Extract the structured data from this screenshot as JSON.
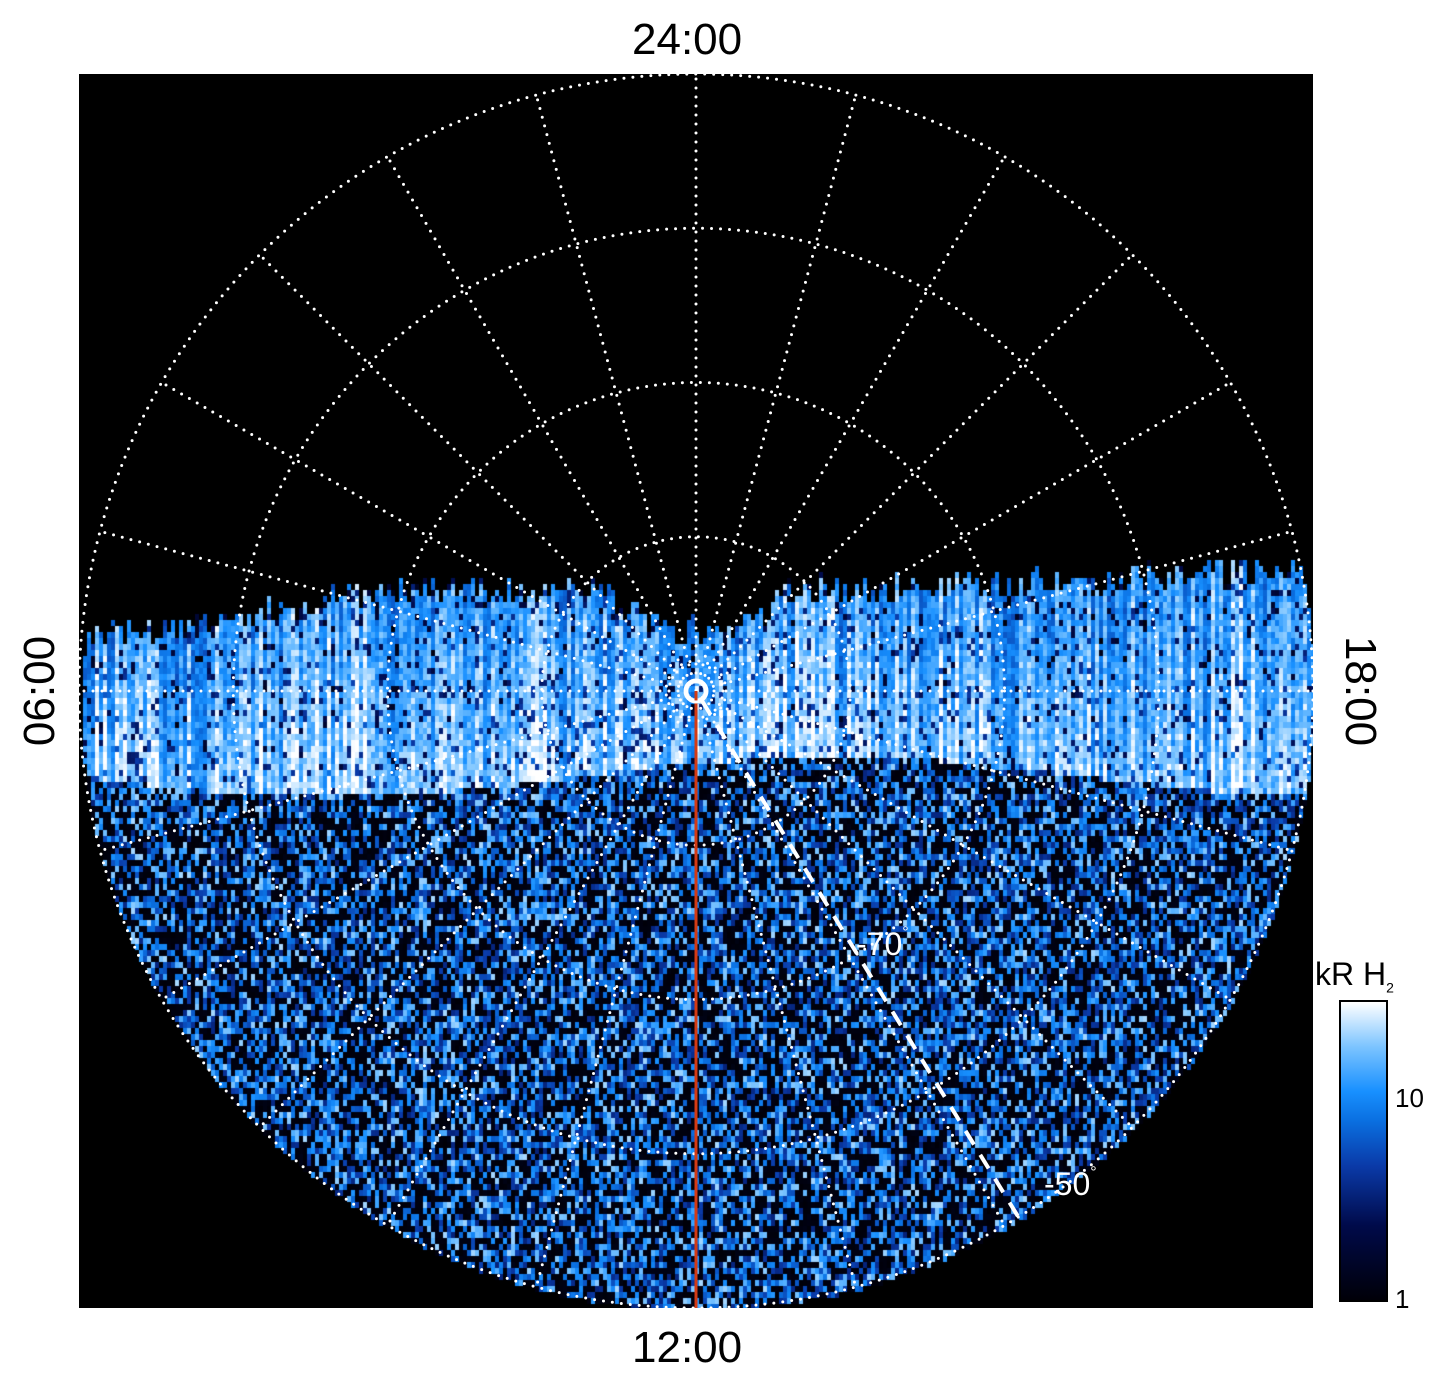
{
  "chart_data": {
    "type": "heatmap",
    "projection": "polar, pole-centered, southern hemisphere",
    "local_time_labels": {
      "top": "24:00",
      "bottom": "12:00",
      "left": "06:00",
      "right": "18:00"
    },
    "latitude_labels": [
      {
        "text": "-70",
        "unit": "°",
        "latitude": -70
      },
      {
        "text": "-50",
        "unit": "°",
        "latitude": -50
      }
    ],
    "latitude_grid": [
      -80,
      -70,
      -60,
      -50
    ],
    "latitude_range": [
      -90,
      -50
    ],
    "local_time_grid_step_hours": 1,
    "grid": true,
    "grid_style": "dotted white",
    "red_line": {
      "local_time": "12:00",
      "from_latitude": -90,
      "to_latitude": -50,
      "color": "#d33a14"
    },
    "dashed_line": {
      "local_time_hours": 14.1,
      "from_latitude": -90,
      "to_latitude": -50,
      "color": "#ffffff"
    },
    "colorbar": {
      "title": "kR H",
      "title_subscript": "2",
      "scale": "log",
      "range": [
        1,
        30
      ],
      "ticks": [
        {
          "value": 1,
          "label": "1"
        },
        {
          "value": 10,
          "label": "10"
        }
      ],
      "colors": [
        "#000008",
        "#000a4a",
        "#0a3aa8",
        "#0a6fe0",
        "#1890ff",
        "#7cc4ff",
        "#ffffff"
      ]
    }
  }
}
